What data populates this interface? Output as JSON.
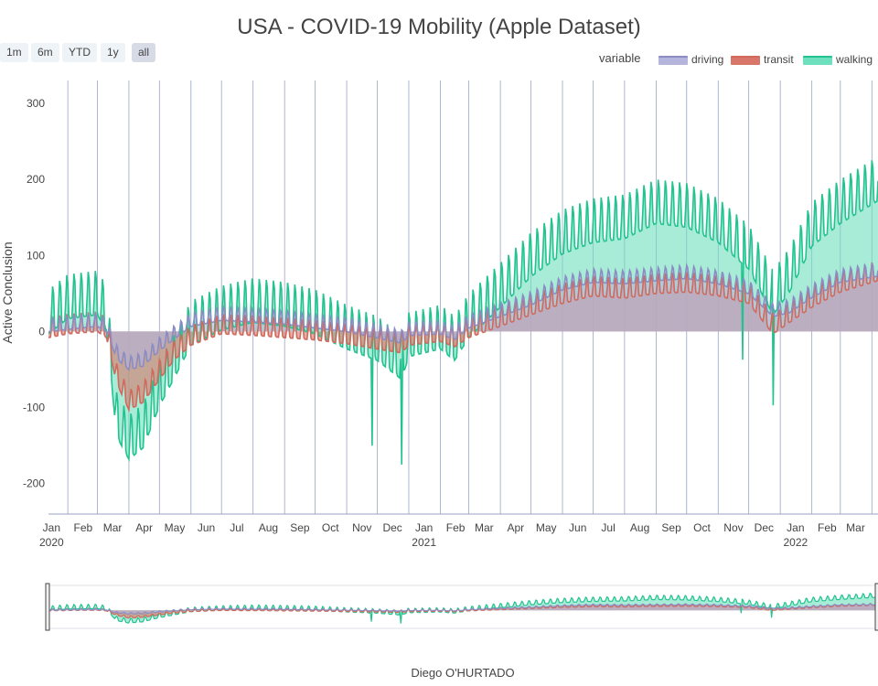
{
  "chart_data": {
    "type": "line",
    "title": "USA - COVID-19 Mobility (Apple Dataset)",
    "xlabel": "",
    "ylabel": "Active Conclusion",
    "ylim": [
      -240,
      330
    ],
    "yticks": [
      -200,
      -100,
      0,
      100,
      200,
      300
    ],
    "xlim": [
      "2020-01-13",
      "2022-04-07"
    ],
    "grid": true,
    "legend_title": "variable",
    "legend_position": "top-right",
    "x_tick_labels": [
      {
        "date": "2020-01-01",
        "label": "Jan",
        "year": "2020"
      },
      {
        "date": "2020-02-01",
        "label": "Feb",
        "year": ""
      },
      {
        "date": "2020-03-01",
        "label": "Mar",
        "year": ""
      },
      {
        "date": "2020-04-01",
        "label": "Apr",
        "year": ""
      },
      {
        "date": "2020-05-01",
        "label": "May",
        "year": ""
      },
      {
        "date": "2020-06-01",
        "label": "Jun",
        "year": ""
      },
      {
        "date": "2020-07-01",
        "label": "Jul",
        "year": ""
      },
      {
        "date": "2020-08-01",
        "label": "Aug",
        "year": ""
      },
      {
        "date": "2020-09-01",
        "label": "Sep",
        "year": ""
      },
      {
        "date": "2020-10-01",
        "label": "Oct",
        "year": ""
      },
      {
        "date": "2020-11-01",
        "label": "Nov",
        "year": ""
      },
      {
        "date": "2020-12-01",
        "label": "Dec",
        "year": ""
      },
      {
        "date": "2021-01-01",
        "label": "Jan",
        "year": "2021"
      },
      {
        "date": "2021-02-01",
        "label": "Feb",
        "year": ""
      },
      {
        "date": "2021-03-01",
        "label": "Mar",
        "year": ""
      },
      {
        "date": "2021-04-01",
        "label": "Apr",
        "year": ""
      },
      {
        "date": "2021-05-01",
        "label": "May",
        "year": ""
      },
      {
        "date": "2021-06-01",
        "label": "Jun",
        "year": ""
      },
      {
        "date": "2021-07-01",
        "label": "Jul",
        "year": ""
      },
      {
        "date": "2021-08-01",
        "label": "Aug",
        "year": ""
      },
      {
        "date": "2021-09-01",
        "label": "Sep",
        "year": ""
      },
      {
        "date": "2021-10-01",
        "label": "Oct",
        "year": ""
      },
      {
        "date": "2021-11-01",
        "label": "Nov",
        "year": ""
      },
      {
        "date": "2021-12-01",
        "label": "Dec",
        "year": ""
      },
      {
        "date": "2022-01-01",
        "label": "Jan",
        "year": "2022"
      },
      {
        "date": "2022-02-01",
        "label": "Feb",
        "year": ""
      },
      {
        "date": "2022-03-01",
        "label": "Mar",
        "year": ""
      }
    ],
    "x_month_lines": [
      "2020-02-01",
      "2020-03-01",
      "2020-04-01",
      "2020-05-01",
      "2020-06-01",
      "2020-07-01",
      "2020-08-01",
      "2020-09-01",
      "2020-10-01",
      "2020-11-01",
      "2020-12-01",
      "2021-01-01",
      "2021-02-01",
      "2021-03-01",
      "2021-04-01",
      "2021-05-01",
      "2021-06-01",
      "2021-07-01",
      "2021-08-01",
      "2021-09-01",
      "2021-10-01",
      "2021-11-01",
      "2021-12-01",
      "2022-01-01",
      "2022-02-01",
      "2022-03-01",
      "2022-04-01"
    ],
    "stacking": "area, each series drawn relative to zero",
    "series": [
      {
        "name": "driving",
        "color": "#b4b4dc",
        "line_color": "#8c8cc4",
        "weekly_oscillation": 12,
        "points": [
          [
            "2020-01-13",
            5
          ],
          [
            "2020-02-01",
            8
          ],
          [
            "2020-03-01",
            12
          ],
          [
            "2020-03-10",
            5
          ],
          [
            "2020-03-20",
            -30
          ],
          [
            "2020-04-01",
            -45
          ],
          [
            "2020-04-15",
            -40
          ],
          [
            "2020-05-01",
            -20
          ],
          [
            "2020-05-15",
            -5
          ],
          [
            "2020-06-01",
            12
          ],
          [
            "2020-07-01",
            20
          ],
          [
            "2020-08-01",
            18
          ],
          [
            "2020-09-01",
            15
          ],
          [
            "2020-10-01",
            10
          ],
          [
            "2020-11-01",
            5
          ],
          [
            "2020-12-01",
            -3
          ],
          [
            "2020-12-25",
            -10
          ],
          [
            "2021-01-01",
            0
          ],
          [
            "2021-02-01",
            2
          ],
          [
            "2021-02-15",
            -5
          ],
          [
            "2021-03-01",
            10
          ],
          [
            "2021-04-01",
            25
          ],
          [
            "2021-05-01",
            40
          ],
          [
            "2021-06-01",
            60
          ],
          [
            "2021-07-01",
            70
          ],
          [
            "2021-08-01",
            68
          ],
          [
            "2021-09-01",
            72
          ],
          [
            "2021-10-01",
            75
          ],
          [
            "2021-11-01",
            68
          ],
          [
            "2021-12-01",
            55
          ],
          [
            "2021-12-25",
            25
          ],
          [
            "2022-01-10",
            30
          ],
          [
            "2022-02-01",
            50
          ],
          [
            "2022-03-01",
            70
          ],
          [
            "2022-04-07",
            78
          ]
        ]
      },
      {
        "name": "transit",
        "color": "#d9766a",
        "line_color": "#d06a5c",
        "weekly_oscillation": 18,
        "points": [
          [
            "2020-01-13",
            0
          ],
          [
            "2020-02-01",
            5
          ],
          [
            "2020-03-01",
            8
          ],
          [
            "2020-03-10",
            0
          ],
          [
            "2020-03-20",
            -60
          ],
          [
            "2020-04-01",
            -95
          ],
          [
            "2020-04-15",
            -85
          ],
          [
            "2020-05-01",
            -55
          ],
          [
            "2020-05-15",
            -30
          ],
          [
            "2020-06-01",
            -10
          ],
          [
            "2020-07-01",
            5
          ],
          [
            "2020-08-01",
            3
          ],
          [
            "2020-09-01",
            0
          ],
          [
            "2020-10-01",
            -3
          ],
          [
            "2020-11-01",
            -8
          ],
          [
            "2020-12-01",
            -15
          ],
          [
            "2020-12-25",
            -20
          ],
          [
            "2021-01-01",
            -10
          ],
          [
            "2021-02-01",
            -5
          ],
          [
            "2021-02-15",
            -12
          ],
          [
            "2021-03-01",
            0
          ],
          [
            "2021-04-01",
            15
          ],
          [
            "2021-05-01",
            30
          ],
          [
            "2021-06-01",
            45
          ],
          [
            "2021-07-01",
            55
          ],
          [
            "2021-08-01",
            52
          ],
          [
            "2021-09-01",
            58
          ],
          [
            "2021-10-01",
            60
          ],
          [
            "2021-11-01",
            55
          ],
          [
            "2021-12-01",
            45
          ],
          [
            "2021-12-25",
            5
          ],
          [
            "2022-01-10",
            20
          ],
          [
            "2022-02-01",
            40
          ],
          [
            "2022-03-01",
            60
          ],
          [
            "2022-04-07",
            75
          ]
        ]
      },
      {
        "name": "walking",
        "color": "#6ee0bd",
        "line_color": "#22c38f",
        "weekly_oscillation": 40,
        "points": [
          [
            "2020-01-13",
            15
          ],
          [
            "2020-02-01",
            35
          ],
          [
            "2020-03-01",
            40
          ],
          [
            "2020-03-10",
            20
          ],
          [
            "2020-03-20",
            -120
          ],
          [
            "2020-04-01",
            -150
          ],
          [
            "2020-04-15",
            -135
          ],
          [
            "2020-05-01",
            -80
          ],
          [
            "2020-05-15",
            -45
          ],
          [
            "2020-06-01",
            0
          ],
          [
            "2020-07-01",
            20
          ],
          [
            "2020-08-01",
            30
          ],
          [
            "2020-09-01",
            25
          ],
          [
            "2020-10-01",
            15
          ],
          [
            "2020-11-01",
            -5
          ],
          [
            "2020-12-01",
            -20
          ],
          [
            "2020-12-25",
            -45
          ],
          [
            "2021-01-01",
            -15
          ],
          [
            "2021-02-01",
            -5
          ],
          [
            "2021-02-15",
            -20
          ],
          [
            "2021-03-01",
            10
          ],
          [
            "2021-04-01",
            50
          ],
          [
            "2021-05-01",
            90
          ],
          [
            "2021-06-01",
            120
          ],
          [
            "2021-07-01",
            135
          ],
          [
            "2021-08-01",
            140
          ],
          [
            "2021-09-01",
            160
          ],
          [
            "2021-10-01",
            155
          ],
          [
            "2021-11-01",
            135
          ],
          [
            "2021-12-01",
            100
          ],
          [
            "2021-12-25",
            40
          ],
          [
            "2022-01-10",
            70
          ],
          [
            "2022-02-01",
            130
          ],
          [
            "2022-03-01",
            160
          ],
          [
            "2022-04-07",
            190
          ]
        ]
      }
    ],
    "dips": [
      {
        "series": "walking",
        "date": "2020-11-26",
        "value": -150
      },
      {
        "series": "walking",
        "date": "2020-12-25",
        "value": -175
      },
      {
        "series": "walking",
        "date": "2021-11-25",
        "value": -37
      },
      {
        "series": "walking",
        "date": "2021-12-25",
        "value": -97
      }
    ],
    "range_selector": {
      "buttons": [
        "1m",
        "6m",
        "YTD",
        "1y",
        "all"
      ],
      "active": "all"
    },
    "range_slider": true,
    "credit": "Diego O'HURTADO"
  }
}
